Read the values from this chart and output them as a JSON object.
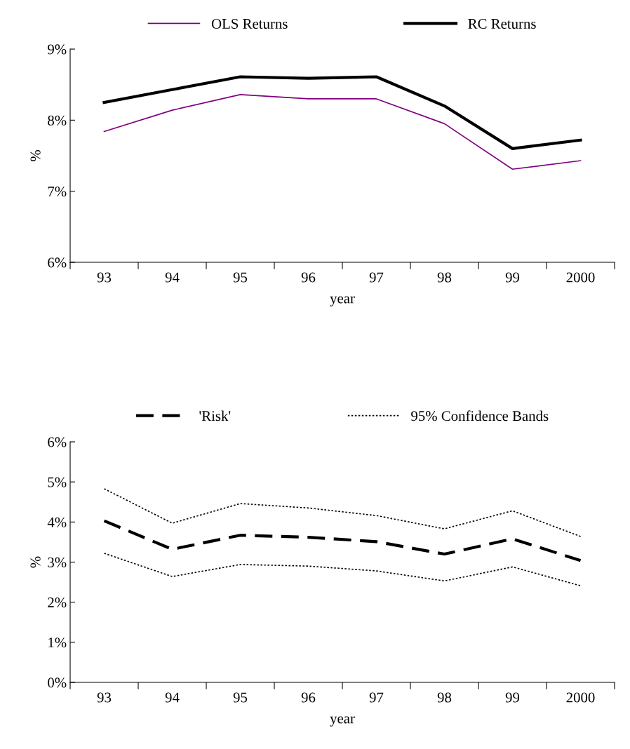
{
  "chart_data": [
    {
      "type": "line",
      "xlabel": "year",
      "ylabel": "%",
      "categories": [
        "93",
        "94",
        "95",
        "96",
        "97",
        "98",
        "99",
        "2000"
      ],
      "series": [
        {
          "name": "OLS Returns",
          "color": "#800080",
          "line_style": "solid",
          "values": [
            7.84,
            8.14,
            8.36,
            8.3,
            8.3,
            7.95,
            7.31,
            7.43
          ]
        },
        {
          "name": "RC Returns",
          "color": "#000000",
          "line_style": "solid",
          "values": [
            8.25,
            8.43,
            8.61,
            8.59,
            8.61,
            8.2,
            7.6,
            7.72
          ]
        }
      ],
      "ylim": [
        6,
        9
      ],
      "yticks": [
        {
          "value": 6,
          "label": "6%"
        },
        {
          "value": 7,
          "label": "7%"
        },
        {
          "value": 8,
          "label": "8%"
        },
        {
          "value": 9,
          "label": "9%"
        }
      ],
      "grid": false,
      "legend": "top",
      "marker": "none"
    },
    {
      "type": "line",
      "xlabel": "year",
      "ylabel": "%",
      "categories": [
        "93",
        "94",
        "95",
        "96",
        "97",
        "98",
        "99",
        "2000"
      ],
      "series": [
        {
          "name": "'Risk'",
          "color": "#000000",
          "line_style": "dashed",
          "values": [
            4.03,
            3.32,
            3.67,
            3.62,
            3.51,
            3.2,
            3.58,
            3.04
          ]
        },
        {
          "name": "95% Confidence Bands",
          "color": "#000000",
          "line_style": "dotted",
          "values": [
            4.83,
            3.97,
            4.46,
            4.35,
            4.16,
            3.83,
            4.28,
            3.64
          ]
        },
        {
          "color": "#000000",
          "line_style": "dotted",
          "values": [
            3.22,
            2.64,
            2.94,
            2.9,
            2.78,
            2.53,
            2.88,
            2.41
          ]
        }
      ],
      "ylim": [
        0,
        6
      ],
      "yticks": [
        {
          "value": 0,
          "label": "0%"
        },
        {
          "value": 1,
          "label": "1%"
        },
        {
          "value": 2,
          "label": "2%"
        },
        {
          "value": 3,
          "label": "3%"
        },
        {
          "value": 4,
          "label": "4%"
        },
        {
          "value": 5,
          "label": "5%"
        },
        {
          "value": 6,
          "label": "6%"
        }
      ],
      "grid": false,
      "legend": "top",
      "marker": "none"
    }
  ]
}
